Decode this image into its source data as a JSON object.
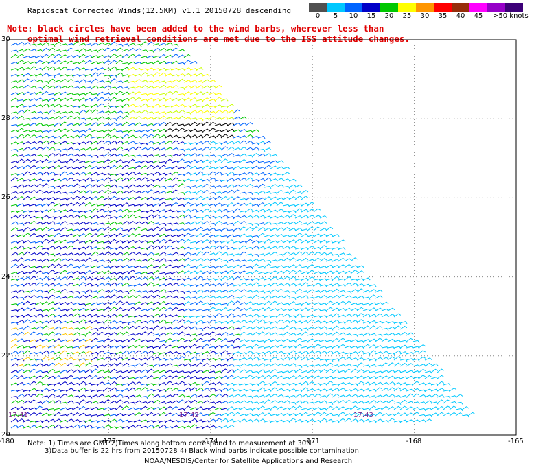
{
  "title": "Rapidscat Corrected Winds(12.5KM) v1.1 20150728 descending",
  "note": {
    "line1": "Note: black circles have been added to the wind barbs, wherever less than",
    "line2": "optimal wind retrieval conditions are met due to the ISS attitude changes."
  },
  "legend": {
    "colors": [
      "#505050",
      "#00c8ff",
      "#0064ff",
      "#0000c8",
      "#00c800",
      "#ffff00",
      "#ff9600",
      "#ff0000",
      "#962d0a",
      "#ff00ff",
      "#9600c8",
      "#3c0078"
    ],
    "labels": [
      "0",
      "5",
      "10",
      "15",
      "20",
      "25",
      "30",
      "35",
      "40",
      "45",
      ">50 knots"
    ]
  },
  "y_labels": [
    "30",
    "28",
    "26",
    "24",
    "22",
    "20"
  ],
  "x_labels": [
    "-180",
    "-177",
    "-174",
    "-171",
    "-168",
    "-165"
  ],
  "times": [
    "17:41",
    "17:42",
    "17:43"
  ],
  "footer": {
    "line1": "Note: 1) Times are GMT 2)Times along bottom correspond to measurement at 30N",
    "line2": "3)Data buffer is 22 hrs from 20150728 4) Black wind barbs indicate possible contamination",
    "line3": "NOAA/NESDIS/Center for Satellite Applications and Research"
  },
  "map": {
    "lon_range": [
      -180,
      -165
    ],
    "lat_range": [
      20,
      30
    ],
    "grid": "dotted"
  }
}
